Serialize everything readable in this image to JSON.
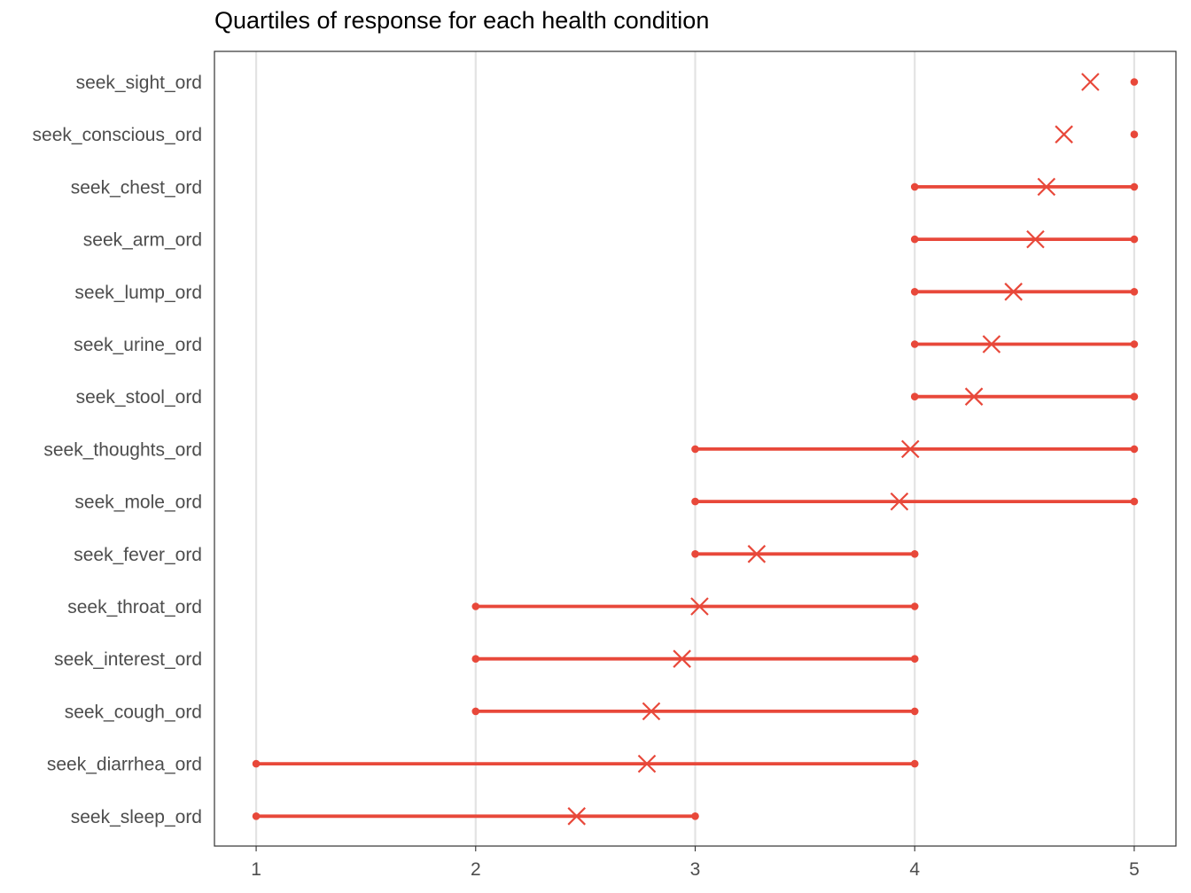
{
  "chart_data": {
    "type": "range-dot",
    "title": "Quartiles of response for each health condition",
    "xlabel": "",
    "ylabel": "",
    "xlim": [
      0.81,
      5.19
    ],
    "xticks": [
      1,
      2,
      3,
      4,
      5
    ],
    "grid": "vertical major gridlines",
    "color": "#e8483a",
    "series": [
      {
        "category": "seek_sight_ord",
        "q1": 5,
        "q3": 5,
        "mean": 4.8
      },
      {
        "category": "seek_conscious_ord",
        "q1": 5,
        "q3": 5,
        "mean": 4.68
      },
      {
        "category": "seek_chest_ord",
        "q1": 4,
        "q3": 5,
        "mean": 4.6
      },
      {
        "category": "seek_arm_ord",
        "q1": 4,
        "q3": 5,
        "mean": 4.55
      },
      {
        "category": "seek_lump_ord",
        "q1": 4,
        "q3": 5,
        "mean": 4.45
      },
      {
        "category": "seek_urine_ord",
        "q1": 4,
        "q3": 5,
        "mean": 4.35
      },
      {
        "category": "seek_stool_ord",
        "q1": 4,
        "q3": 5,
        "mean": 4.27
      },
      {
        "category": "seek_thoughts_ord",
        "q1": 3,
        "q3": 5,
        "mean": 3.98
      },
      {
        "category": "seek_mole_ord",
        "q1": 3,
        "q3": 5,
        "mean": 3.93
      },
      {
        "category": "seek_fever_ord",
        "q1": 3,
        "q3": 4,
        "mean": 3.28
      },
      {
        "category": "seek_throat_ord",
        "q1": 2,
        "q3": 4,
        "mean": 3.02
      },
      {
        "category": "seek_interest_ord",
        "q1": 2,
        "q3": 4,
        "mean": 2.94
      },
      {
        "category": "seek_cough_ord",
        "q1": 2,
        "q3": 4,
        "mean": 2.8
      },
      {
        "category": "seek_diarrhea_ord",
        "q1": 1,
        "q3": 4,
        "mean": 2.78
      },
      {
        "category": "seek_sleep_ord",
        "q1": 1,
        "q3": 3,
        "mean": 2.46
      }
    ]
  }
}
